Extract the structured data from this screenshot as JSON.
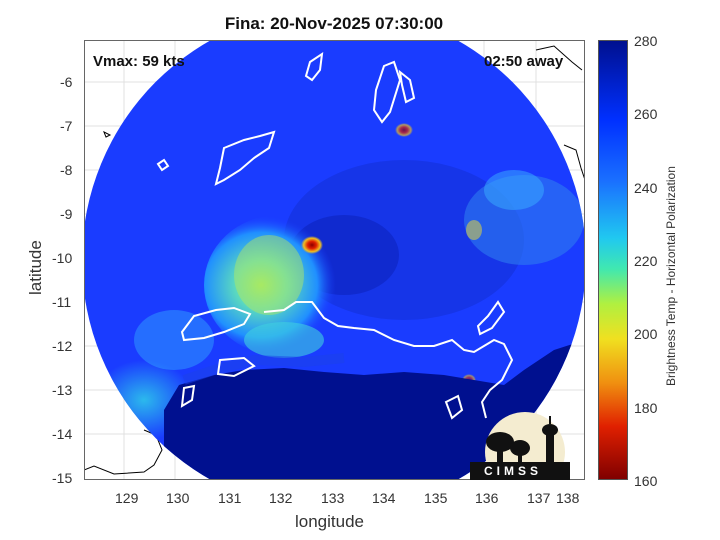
{
  "title": "Fina: 20-Nov-2025 07:30:00",
  "vmax_label": "Vmax: 59 kts",
  "away_label": "02:50 away",
  "xaxis": {
    "label": "longitude",
    "ticks": [
      "129",
      "130",
      "131",
      "132",
      "133",
      "134",
      "135",
      "136",
      "137",
      "138"
    ],
    "range": [
      128.2,
      138.3
    ]
  },
  "yaxis": {
    "label": "latitude",
    "ticks": [
      "-6",
      "-7",
      "-8",
      "-9",
      "-10",
      "-11",
      "-12",
      "-13",
      "-14",
      "-15"
    ],
    "range": [
      -15,
      -5.1
    ]
  },
  "colorbar": {
    "label": "Brightness Temp - Horizontal Polarization",
    "ticks": [
      "280",
      "260",
      "240",
      "220",
      "200",
      "180",
      "160"
    ],
    "range": [
      160,
      280
    ],
    "colormap": "jet"
  },
  "logo_text": "CIMSS",
  "colors": {
    "deep_blue": "#00108f",
    "blue": "#1a3cff",
    "cyan": "#20d4e0",
    "yellow": "#e8ea20",
    "red": "#d61a00",
    "dark_red": "#7a0000",
    "coast": "#ffffff",
    "coast_outside": "#000000"
  }
}
